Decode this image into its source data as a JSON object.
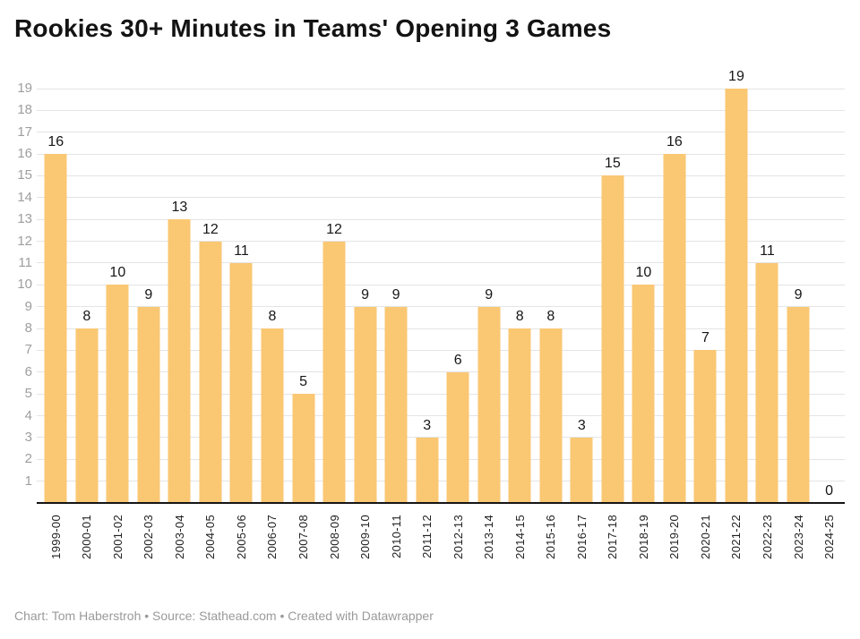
{
  "title": "Rookies 30+ Minutes in Teams' Opening 3 Games",
  "footer": {
    "text": "Chart: Tom Haberstroh • Source: Stathead.com • Created with Datawrapper"
  },
  "colors": {
    "bar": "#FAC773",
    "grid": "#e4e4e4",
    "baseline": "#151515",
    "ytick": "#9e9e9e",
    "xtick": "#1f1f1f",
    "value": "#161616",
    "title": "#131313",
    "footer": "#9a9a9a"
  },
  "chart_data": {
    "type": "bar",
    "title": "Rookies 30+ Minutes in Teams' Opening 3 Games",
    "categories": [
      "1999-00",
      "2000-01",
      "2001-02",
      "2002-03",
      "2003-04",
      "2004-05",
      "2005-06",
      "2006-07",
      "2007-08",
      "2008-09",
      "2009-10",
      "2010-11",
      "2011-12",
      "2012-13",
      "2013-14",
      "2014-15",
      "2015-16",
      "2016-17",
      "2017-18",
      "2018-19",
      "2019-20",
      "2020-21",
      "2021-22",
      "2022-23",
      "2023-24",
      "2024-25"
    ],
    "values": [
      16,
      8,
      10,
      9,
      13,
      12,
      11,
      8,
      5,
      12,
      9,
      9,
      3,
      6,
      9,
      8,
      8,
      3,
      15,
      10,
      16,
      7,
      19,
      11,
      9,
      0
    ],
    "xlabel": "",
    "ylabel": "",
    "ylim": [
      0,
      19
    ],
    "yticks": [
      1,
      2,
      3,
      4,
      5,
      6,
      7,
      8,
      9,
      10,
      11,
      12,
      13,
      14,
      15,
      16,
      17,
      18,
      19
    ],
    "grid": true,
    "legend_position": "none",
    "value_labels": true,
    "source": "Stathead.com",
    "credit": "Tom Haberstroh"
  }
}
